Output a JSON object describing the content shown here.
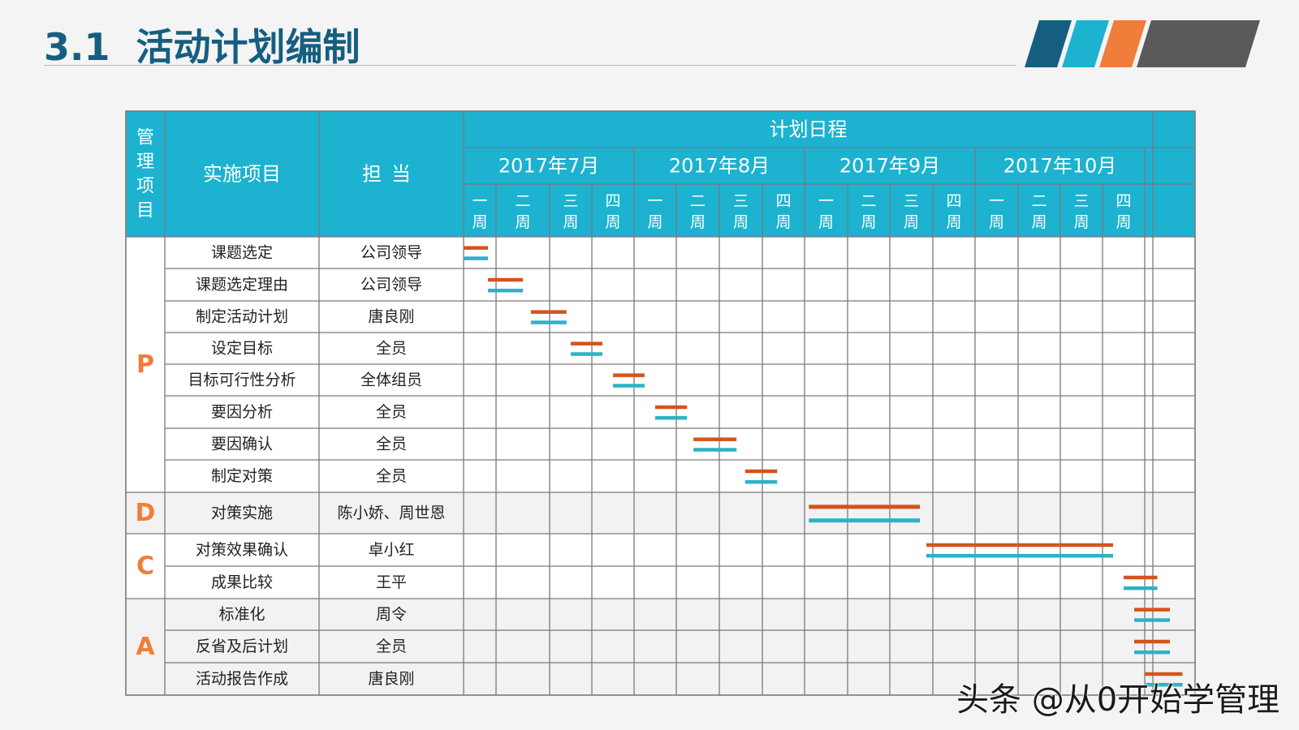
{
  "header": {
    "section_number": "3.1",
    "title": "活动计划编制"
  },
  "colors": {
    "header_bg": "#1cb2d0",
    "header_text": "#ffffff",
    "phase_letter": "#f07d3a",
    "bar_plan": "#d4541c",
    "bar_actual": "#2cb2c8",
    "grid": "#7a7a7a",
    "stripe_1": "#155e80",
    "stripe_2": "#1cb2d0",
    "stripe_3": "#f07d3a",
    "stripe_4": "#5a5a5a"
  },
  "table": {
    "col_phase": "管理项目",
    "col_item": "实施项目",
    "col_owner": "担当",
    "schedule_title": "计划日程",
    "months": [
      "2017年7月",
      "2017年8月",
      "2017年9月",
      "2017年10月"
    ],
    "weeks": [
      "一周",
      "二周",
      "三周",
      "四周"
    ],
    "phases": [
      {
        "letter": "P",
        "rows": 8
      },
      {
        "letter": "D",
        "rows": 1
      },
      {
        "letter": "C",
        "rows": 2
      },
      {
        "letter": "A",
        "rows": 3
      }
    ],
    "tasks": [
      {
        "item": "课题选定",
        "owner": "公司领导",
        "start_week": 0.0,
        "end_week": 0.75
      },
      {
        "item": "课题选定理由",
        "owner": "公司领导",
        "start_week": 0.75,
        "end_week": 1.5
      },
      {
        "item": "制定活动计划",
        "owner": "唐良刚",
        "start_week": 1.65,
        "end_week": 2.4
      },
      {
        "item": "设定目标",
        "owner": "全员",
        "start_week": 2.5,
        "end_week": 3.25
      },
      {
        "item": "目标可行性分析",
        "owner": "全体组员",
        "start_week": 3.5,
        "end_week": 4.25
      },
      {
        "item": "要因分析",
        "owner": "全员",
        "start_week": 4.5,
        "end_week": 5.25
      },
      {
        "item": "要因确认",
        "owner": "全员",
        "start_week": 5.4,
        "end_week": 6.4
      },
      {
        "item": "制定对策",
        "owner": "全员",
        "start_week": 6.6,
        "end_week": 7.35
      },
      {
        "item": "对策实施",
        "owner": "陈小娇、周世恩",
        "start_week": 8.1,
        "end_week": 10.7
      },
      {
        "item": "对策效果确认",
        "owner": "卓小红",
        "start_week": 10.85,
        "end_week": 15.25
      },
      {
        "item": "成果比较",
        "owner": "王平",
        "start_week": 15.5,
        "end_week": 16.25
      },
      {
        "item": "标准化",
        "owner": "周令",
        "start_week": 15.75,
        "end_week": 16.5
      },
      {
        "item": "反省及后计划",
        "owner": "全员",
        "start_week": 15.75,
        "end_week": 16.5
      },
      {
        "item": "活动报告作成",
        "owner": "唐良刚",
        "start_week": 16.0,
        "end_week": 16.75
      }
    ]
  },
  "watermark": "头条 @从0开始学管理"
}
